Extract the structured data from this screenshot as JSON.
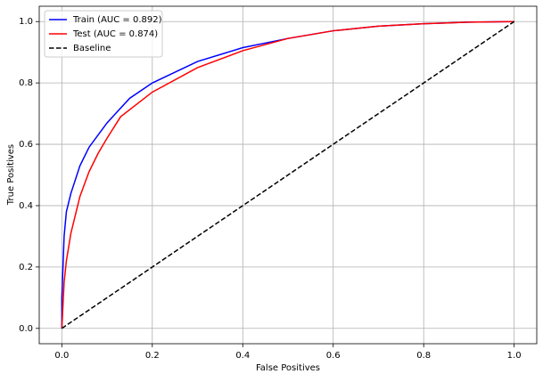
{
  "chart_data": {
    "type": "line",
    "xlabel": "False Positives",
    "ylabel": "True Positives",
    "xlim": [
      -0.05,
      1.05
    ],
    "ylim": [
      -0.05,
      1.05
    ],
    "xticks": [
      {
        "value": 0,
        "label": "0.0"
      },
      0.2,
      0.4,
      0.6,
      0.8,
      {
        "value": 1,
        "label": "1.0"
      }
    ],
    "yticks": [
      {
        "value": 0,
        "label": "0.0"
      },
      0.2,
      0.4,
      0.6,
      0.8,
      {
        "value": 1,
        "label": "1.0"
      }
    ],
    "grid": true,
    "legend": "upper left",
    "series": [
      {
        "name": "Train (AUC = 0.892)",
        "color": "#0000ff",
        "linestyle": "solid",
        "x": [
          0,
          0,
          0.005,
          0.01,
          0.02,
          0.04,
          0.06,
          0.1,
          0.15,
          0.2,
          0.3,
          0.4,
          0.5,
          0.6,
          0.7,
          0.8,
          0.9,
          1
        ],
        "values": [
          0,
          0.1,
          0.3,
          0.38,
          0.44,
          0.53,
          0.59,
          0.67,
          0.75,
          0.8,
          0.87,
          0.915,
          0.945,
          0.97,
          0.985,
          0.993,
          0.998,
          1
        ]
      },
      {
        "name": "Test (AUC = 0.874)",
        "color": "#ff0000",
        "linestyle": "solid",
        "x": [
          0,
          0.005,
          0.01,
          0.02,
          0.04,
          0.06,
          0.08,
          0.1,
          0.13,
          0.2,
          0.3,
          0.4,
          0.5,
          0.6,
          0.7,
          0.8,
          0.9,
          1
        ],
        "values": [
          0,
          0.15,
          0.22,
          0.31,
          0.43,
          0.51,
          0.57,
          0.62,
          0.69,
          0.77,
          0.85,
          0.905,
          0.945,
          0.97,
          0.985,
          0.993,
          0.998,
          1
        ]
      },
      {
        "name": "Baseline",
        "color": "#000000",
        "linestyle": "dashed",
        "x": [
          0,
          1
        ],
        "values": [
          0,
          1
        ]
      }
    ]
  }
}
